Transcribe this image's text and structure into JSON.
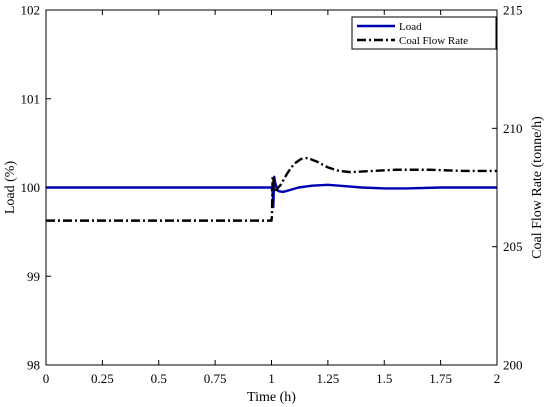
{
  "chart_data": {
    "type": "line",
    "title": "",
    "xlabel": "Time (h)",
    "ylabel_left": "Load (%)",
    "ylabel_right": "Coal Flow Rate (tonne/h)",
    "xlim": [
      0,
      2
    ],
    "ylim_left": [
      98,
      102
    ],
    "ylim_right": [
      200,
      215
    ],
    "x_ticks": [
      0,
      0.25,
      0.5,
      0.75,
      1,
      1.25,
      1.5,
      1.75,
      2
    ],
    "x_tick_labels": [
      "0",
      "0.25",
      "0.5",
      "0.75",
      "1",
      "1.25",
      "1.5",
      "1.75",
      "2"
    ],
    "y_left_ticks": [
      98,
      99,
      100,
      101,
      102
    ],
    "y_left_tick_labels": [
      "98",
      "99",
      "100",
      "101",
      "102"
    ],
    "y_right_ticks": [
      200,
      205,
      210,
      215
    ],
    "y_right_tick_labels": [
      "200",
      "205",
      "210",
      "215"
    ],
    "grid": false,
    "legend_position": "top-right",
    "series": [
      {
        "name": "Load",
        "axis": "left",
        "color": "#0000b3",
        "style": "solid",
        "x": [
          0,
          1.0,
          1.005,
          1.008,
          1.012,
          1.016,
          1.022,
          1.03,
          1.05,
          1.08,
          1.12,
          1.18,
          1.25,
          1.3,
          1.4,
          1.5,
          1.6,
          1.75,
          2
        ],
        "y": [
          100,
          100,
          99.95,
          99.78,
          100.12,
          100.06,
          100.0,
          99.96,
          99.95,
          99.97,
          100.0,
          100.02,
          100.03,
          100.02,
          100.0,
          99.99,
          99.99,
          100.0,
          100.0
        ]
      },
      {
        "name": "Coal Flow Rate",
        "axis": "right",
        "color": "#000000",
        "style": "dashdot",
        "x": [
          0,
          1.0,
          1.002,
          1.005,
          1.008,
          1.012,
          1.02,
          1.04,
          1.07,
          1.1,
          1.13,
          1.16,
          1.2,
          1.25,
          1.3,
          1.35,
          1.45,
          1.55,
          1.7,
          1.85,
          2
        ],
        "y": [
          206.1,
          206.1,
          206.3,
          208.0,
          207.9,
          207.3,
          207.4,
          207.6,
          208.1,
          208.5,
          208.7,
          208.75,
          208.6,
          208.35,
          208.2,
          208.15,
          208.2,
          208.25,
          208.25,
          208.2,
          208.2
        ]
      }
    ]
  }
}
